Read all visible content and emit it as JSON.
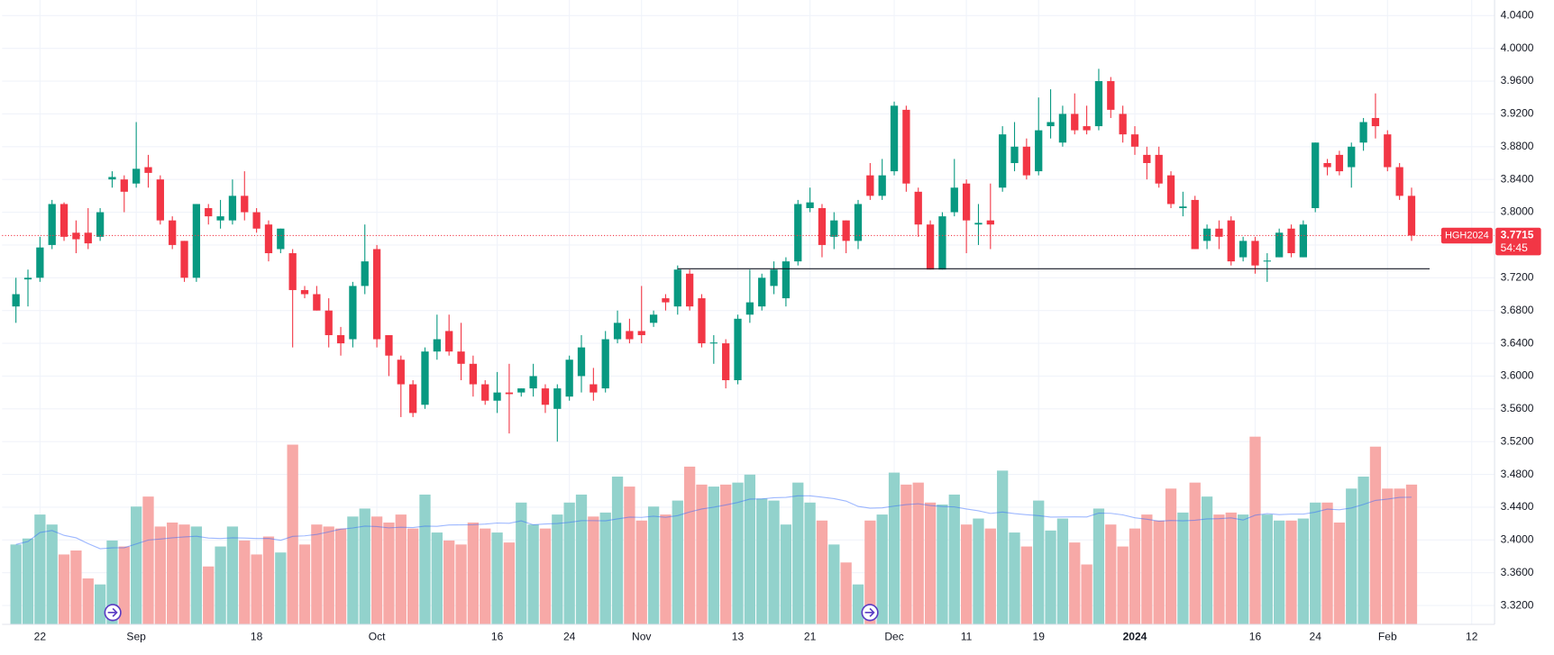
{
  "chart_data": {
    "type": "candlestick",
    "symbol": "HGH2024",
    "countdown": "54:45",
    "up_color": "#089981",
    "down_color": "#f23645",
    "volume_up_color": "#92d2cc",
    "volume_down_color": "#f7a9a7",
    "grid": true,
    "last_price_line": true,
    "support_line": {
      "value": 3.731,
      "from": 55,
      "to": 117.5
    },
    "xlim": [
      -1.15,
      122.9
    ],
    "xticks": [
      {
        "value": 2,
        "label": "22"
      },
      {
        "value": 10,
        "label": "Sep"
      },
      {
        "value": 20,
        "label": "18"
      },
      {
        "value": 30,
        "label": "Oct"
      },
      {
        "value": 40,
        "label": "16"
      },
      {
        "value": 46,
        "label": "24"
      },
      {
        "value": 52,
        "label": "Nov"
      },
      {
        "value": 60,
        "label": "13"
      },
      {
        "value": 66,
        "label": "21"
      },
      {
        "value": 73,
        "label": "Dec"
      },
      {
        "value": 79,
        "label": "11"
      },
      {
        "value": 85,
        "label": "19"
      },
      {
        "value": 93,
        "label": "2024"
      },
      {
        "value": 103,
        "label": "16"
      },
      {
        "value": 108,
        "label": "24"
      },
      {
        "value": 114,
        "label": "Feb"
      },
      {
        "value": 121,
        "label": "12"
      }
    ],
    "ylim": [
      3.297,
      4.059
    ],
    "yticks": [
      {
        "value": 3.32,
        "label": "3.3200"
      },
      {
        "value": 3.36,
        "label": "3.3600"
      },
      {
        "value": 3.4,
        "label": "3.4000"
      },
      {
        "value": 3.44,
        "label": "3.4400"
      },
      {
        "value": 3.48,
        "label": "3.4800"
      },
      {
        "value": 3.52,
        "label": "3.5200"
      },
      {
        "value": 3.56,
        "label": "3.5600"
      },
      {
        "value": 3.6,
        "label": "3.6000"
      },
      {
        "value": 3.64,
        "label": "3.6400"
      },
      {
        "value": 3.68,
        "label": "3.6800"
      },
      {
        "value": 3.72,
        "label": "3.7200"
      },
      {
        "value": 3.76,
        "label": "3.7600"
      },
      {
        "value": 3.8,
        "label": "3.8000"
      },
      {
        "value": 3.84,
        "label": "3.8400"
      },
      {
        "value": 3.88,
        "label": "3.8800"
      },
      {
        "value": 3.92,
        "label": "3.9200"
      },
      {
        "value": 3.96,
        "label": "3.9600"
      },
      {
        "value": 4.0,
        "label": "4.0000"
      },
      {
        "value": 4.04,
        "label": "4.0400"
      }
    ],
    "open": [
      3.685,
      3.718,
      3.72,
      3.76,
      3.81,
      3.775,
      3.775,
      3.77,
      3.84,
      3.84,
      3.835,
      3.855,
      3.84,
      3.79,
      3.765,
      3.72,
      3.805,
      3.79,
      3.79,
      3.82,
      3.8,
      3.785,
      3.755,
      3.75,
      3.705,
      3.7,
      3.68,
      3.65,
      3.645,
      3.71,
      3.755,
      3.65,
      3.62,
      3.59,
      3.565,
      3.63,
      3.655,
      3.63,
      3.615,
      3.59,
      3.57,
      3.58,
      3.58,
      3.585,
      3.585,
      3.56,
      3.575,
      3.6,
      3.59,
      3.585,
      3.645,
      3.655,
      3.655,
      3.665,
      3.695,
      3.685,
      3.725,
      3.695,
      3.64,
      3.64,
      3.595,
      3.675,
      3.685,
      3.71,
      3.695,
      3.74,
      3.805,
      3.805,
      3.77,
      3.79,
      3.765,
      3.845,
      3.82,
      3.85,
      3.925,
      3.825,
      3.785,
      3.73,
      3.8,
      3.835,
      3.785,
      3.79,
      3.83,
      3.86,
      3.88,
      3.85,
      3.905,
      3.885,
      3.92,
      3.905,
      3.905,
      3.96,
      3.92,
      3.895,
      3.87,
      3.87,
      3.845,
      3.805,
      3.815,
      3.765,
      3.78,
      3.79,
      3.745,
      3.765,
      3.74,
      3.745,
      3.78,
      3.745,
      3.805,
      3.86,
      3.87,
      3.855,
      3.885,
      3.915,
      3.895,
      3.855,
      3.82
    ],
    "high": [
      3.72,
      3.73,
      3.77,
      3.815,
      3.812,
      3.79,
      3.805,
      3.805,
      3.85,
      3.845,
      3.91,
      3.87,
      3.845,
      3.795,
      3.765,
      3.81,
      3.81,
      3.815,
      3.84,
      3.85,
      3.805,
      3.79,
      3.78,
      3.755,
      3.71,
      3.71,
      3.695,
      3.66,
      3.715,
      3.785,
      3.76,
      3.65,
      3.625,
      3.595,
      3.635,
      3.675,
      3.675,
      3.665,
      3.625,
      3.595,
      3.605,
      3.615,
      3.585,
      3.615,
      3.59,
      3.59,
      3.625,
      3.65,
      3.61,
      3.655,
      3.68,
      3.67,
      3.71,
      3.68,
      3.7,
      3.735,
      3.73,
      3.7,
      3.65,
      3.645,
      3.675,
      3.73,
      3.725,
      3.74,
      3.745,
      3.815,
      3.83,
      3.81,
      3.8,
      3.79,
      3.815,
      3.86,
      3.865,
      3.935,
      3.93,
      3.83,
      3.79,
      3.8,
      3.865,
      3.84,
      3.81,
      3.835,
      3.905,
      3.91,
      3.89,
      3.94,
      3.95,
      3.93,
      3.945,
      3.93,
      3.975,
      3.965,
      3.93,
      3.905,
      3.88,
      3.88,
      3.85,
      3.825,
      3.82,
      3.785,
      3.79,
      3.795,
      3.77,
      3.77,
      3.75,
      3.78,
      3.785,
      3.79,
      3.885,
      3.865,
      3.875,
      3.885,
      3.915,
      3.945,
      3.9,
      3.86,
      3.83
    ],
    "low": [
      3.665,
      3.685,
      3.715,
      3.755,
      3.765,
      3.75,
      3.755,
      3.765,
      3.83,
      3.8,
      3.83,
      3.83,
      3.785,
      3.755,
      3.715,
      3.715,
      3.785,
      3.78,
      3.785,
      3.79,
      3.775,
      3.74,
      3.75,
      3.635,
      3.695,
      3.68,
      3.635,
      3.625,
      3.635,
      3.7,
      3.635,
      3.6,
      3.55,
      3.55,
      3.56,
      3.62,
      3.625,
      3.595,
      3.575,
      3.565,
      3.555,
      3.53,
      3.575,
      3.575,
      3.555,
      3.52,
      3.57,
      3.58,
      3.57,
      3.58,
      3.64,
      3.64,
      3.64,
      3.66,
      3.68,
      3.675,
      3.68,
      3.635,
      3.615,
      3.585,
      3.59,
      3.665,
      3.68,
      3.7,
      3.685,
      3.735,
      3.8,
      3.745,
      3.755,
      3.75,
      3.755,
      3.815,
      3.815,
      3.845,
      3.825,
      3.77,
      3.73,
      3.73,
      3.795,
      3.75,
      3.76,
      3.755,
      3.825,
      3.85,
      3.84,
      3.845,
      3.89,
      3.88,
      3.895,
      3.895,
      3.9,
      3.915,
      3.885,
      3.87,
      3.84,
      3.83,
      3.805,
      3.795,
      3.755,
      3.755,
      3.755,
      3.735,
      3.74,
      3.725,
      3.715,
      3.745,
      3.745,
      3.745,
      3.8,
      3.845,
      3.845,
      3.83,
      3.875,
      3.89,
      3.85,
      3.815,
      3.765
    ],
    "close": [
      3.7,
      3.72,
      3.757,
      3.81,
      3.77,
      3.767,
      3.762,
      3.8,
      3.843,
      3.825,
      3.853,
      3.848,
      3.79,
      3.76,
      3.72,
      3.81,
      3.795,
      3.795,
      3.82,
      3.8,
      3.78,
      3.75,
      3.78,
      3.705,
      3.7,
      3.68,
      3.65,
      3.64,
      3.71,
      3.74,
      3.645,
      3.625,
      3.59,
      3.555,
      3.63,
      3.645,
      3.63,
      3.615,
      3.59,
      3.57,
      3.58,
      3.578,
      3.585,
      3.6,
      3.565,
      3.585,
      3.62,
      3.635,
      3.58,
      3.645,
      3.665,
      3.645,
      3.65,
      3.675,
      3.69,
      3.73,
      3.685,
      3.64,
      3.641,
      3.595,
      3.67,
      3.69,
      3.72,
      3.73,
      3.74,
      3.81,
      3.812,
      3.76,
      3.79,
      3.765,
      3.81,
      3.82,
      3.845,
      3.93,
      3.835,
      3.785,
      3.73,
      3.795,
      3.83,
      3.79,
      3.787,
      3.785,
      3.895,
      3.88,
      3.845,
      3.9,
      3.91,
      3.92,
      3.9,
      3.9,
      3.96,
      3.925,
      3.895,
      3.88,
      3.86,
      3.835,
      3.81,
      3.807,
      3.755,
      3.78,
      3.77,
      3.74,
      3.765,
      3.735,
      3.741,
      3.775,
      3.75,
      3.785,
      3.885,
      3.855,
      3.85,
      3.88,
      3.91,
      3.905,
      3.855,
      3.82,
      3.7715
    ],
    "volume": [
      80,
      86,
      110,
      100,
      70,
      74,
      46,
      40,
      84,
      78,
      118,
      128,
      98,
      102,
      100,
      98,
      58,
      78,
      98,
      84,
      70,
      88,
      72,
      180,
      80,
      100,
      98,
      96,
      108,
      116,
      108,
      102,
      110,
      96,
      130,
      92,
      84,
      80,
      102,
      96,
      92,
      82,
      122,
      100,
      96,
      110,
      122,
      130,
      108,
      112,
      148,
      138,
      104,
      118,
      110,
      124,
      158,
      140,
      138,
      140,
      142,
      150,
      126,
      124,
      100,
      142,
      122,
      104,
      80,
      62,
      40,
      104,
      110,
      152,
      140,
      142,
      122,
      120,
      130,
      100,
      106,
      96,
      154,
      92,
      78,
      124,
      94,
      106,
      82,
      60,
      116,
      100,
      78,
      96,
      110,
      104,
      136,
      112,
      142,
      128,
      110,
      112,
      110,
      188,
      110,
      104,
      104,
      106,
      122,
      122,
      102,
      136,
      148,
      178,
      136,
      136,
      140
    ]
  }
}
